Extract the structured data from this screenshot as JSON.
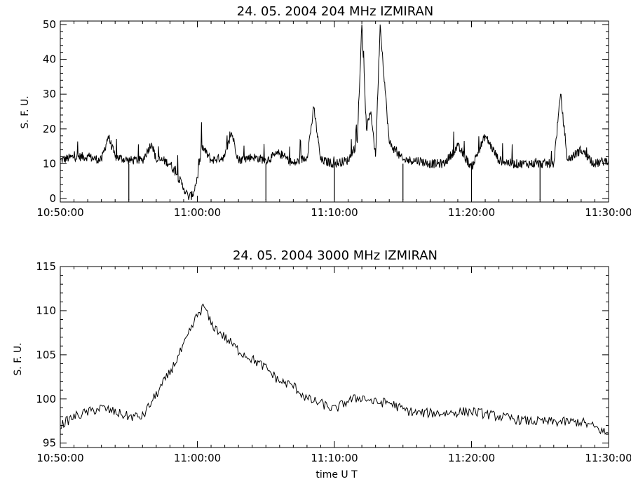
{
  "chart_data": [
    {
      "type": "line",
      "title": "24.  05.  2004    204 MHz    IZMIRAN",
      "ylabel": "S. F. U.",
      "xlabel": "",
      "xlim": [
        "10:50:00",
        "11:30:00"
      ],
      "ylim": [
        -1,
        51
      ],
      "x_ticks": [
        "10:50:00",
        "11:00:00",
        "11:10:00",
        "11:20:00",
        "11:30:00"
      ],
      "y_ticks": [
        0,
        10,
        20,
        30,
        40,
        50
      ],
      "grid": false,
      "series": [
        {
          "x": [
            "10:50:00",
            "10:51:00",
            "10:52:00",
            "10:53:00",
            "10:53:30",
            "10:54:00",
            "10:55:00",
            "10:56:00",
            "10:56:40",
            "10:57:00",
            "10:57:30",
            "10:58:00",
            "10:58:30",
            "10:59:00",
            "10:59:20",
            "10:59:40",
            "11:00:00",
            "11:00:20",
            "11:01:00",
            "11:02:00",
            "11:02:30",
            "11:03:00",
            "11:04:00",
            "11:05:00",
            "11:06:00",
            "11:07:00",
            "11:08:00",
            "11:08:30",
            "11:09:00",
            "11:10:00",
            "11:11:00",
            "11:11:40",
            "11:12:00",
            "11:12:20",
            "11:12:40",
            "11:13:00",
            "11:13:20",
            "11:14:00",
            "11:15:00",
            "11:16:00",
            "11:17:00",
            "11:18:00",
            "11:19:00",
            "11:20:00",
            "11:21:00",
            "11:22:00",
            "11:23:00",
            "11:24:00",
            "11:25:00",
            "11:26:00",
            "11:26:30",
            "11:27:00",
            "11:28:00",
            "11:29:00",
            "11:30:00"
          ],
          "y": [
            11,
            12,
            12,
            11,
            18,
            12,
            11,
            11,
            16,
            11,
            11,
            10,
            7,
            3,
            0.5,
            1,
            6,
            15,
            11,
            12,
            19,
            11,
            12,
            11,
            13,
            10,
            12,
            26,
            11,
            10,
            11,
            16,
            50,
            20,
            25,
            12,
            50,
            16,
            11,
            11,
            10,
            10,
            15,
            9,
            18,
            11,
            10,
            10,
            10,
            10,
            30,
            11,
            14,
            10,
            11
          ]
        }
      ],
      "dropouts": [
        "10:55:00",
        "11:05:00",
        "11:10:00",
        "11:15:00",
        "11:20:00",
        "11:25:00"
      ]
    },
    {
      "type": "line",
      "title": "24.  05.  2004    3000 MHz    IZMIRAN",
      "ylabel": "S. F. U.",
      "xlabel": "time   U T",
      "xlim": [
        "10:50:00",
        "11:30:00"
      ],
      "ylim": [
        94.5,
        115
      ],
      "x_ticks": [
        "10:50:00",
        "11:00:00",
        "11:10:00",
        "11:20:00",
        "11:30:00"
      ],
      "y_ticks": [
        95,
        100,
        105,
        110,
        115
      ],
      "grid": false,
      "series": [
        {
          "x": [
            "10:50:00",
            "10:51:00",
            "10:52:00",
            "10:53:00",
            "10:54:00",
            "10:55:00",
            "10:56:00",
            "10:57:00",
            "10:58:00",
            "10:59:00",
            "11:00:00",
            "11:00:30",
            "11:01:00",
            "11:02:00",
            "11:03:00",
            "11:04:00",
            "11:05:00",
            "11:06:00",
            "11:07:00",
            "11:08:00",
            "11:09:00",
            "11:10:00",
            "11:11:00",
            "11:12:00",
            "11:13:00",
            "11:14:00",
            "11:15:00",
            "11:16:00",
            "11:18:00",
            "11:20:00",
            "11:22:00",
            "11:24:00",
            "11:26:00",
            "11:28:00",
            "11:29:00",
            "11:30:00"
          ],
          "y": [
            97,
            98,
            98.5,
            99,
            98.5,
            98,
            98,
            100.5,
            103,
            106,
            109.5,
            110.5,
            108.5,
            107,
            105.5,
            104.5,
            103.5,
            102,
            101.5,
            100,
            99.5,
            98.8,
            99.8,
            100.2,
            99.6,
            99.6,
            98.8,
            98.4,
            98.4,
            98.6,
            98,
            97.5,
            97.4,
            97.4,
            96.8,
            96
          ]
        }
      ]
    }
  ]
}
